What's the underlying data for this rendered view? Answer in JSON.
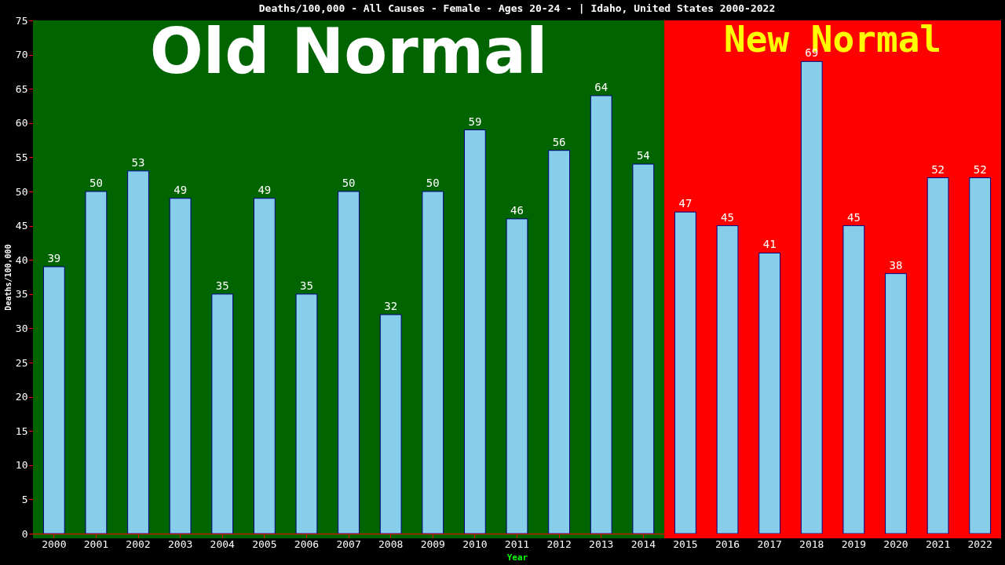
{
  "chart_data": {
    "type": "bar",
    "title": "Deaths/100,000 - All Causes - Female - Ages 20-24 -  | Idaho, United States 2000-2022",
    "xlabel": "Year",
    "ylabel": "Deaths/100,000",
    "categories": [
      "2000",
      "2001",
      "2002",
      "2003",
      "2004",
      "2005",
      "2006",
      "2007",
      "2008",
      "2009",
      "2010",
      "2011",
      "2012",
      "2013",
      "2014",
      "2015",
      "2016",
      "2017",
      "2018",
      "2019",
      "2020",
      "2021",
      "2022"
    ],
    "values": [
      39,
      50,
      53,
      49,
      35,
      49,
      35,
      50,
      32,
      50,
      59,
      46,
      56,
      64,
      54,
      47,
      45,
      41,
      69,
      45,
      38,
      52,
      52
    ],
    "color": "#87ceeb",
    "ylim": [
      0,
      75
    ],
    "yticks": [
      0,
      5,
      10,
      15,
      20,
      25,
      30,
      35,
      40,
      45,
      50,
      55,
      60,
      65,
      70,
      75
    ],
    "grid": false,
    "data_labels": true,
    "bands": [
      {
        "axis": "x",
        "from": "2000",
        "to": "2014",
        "label": "Old Normal",
        "color": "#006400"
      },
      {
        "axis": "x",
        "from": "2015",
        "to": "2022",
        "label": "New Normal",
        "color": "#ff0000"
      }
    ]
  }
}
